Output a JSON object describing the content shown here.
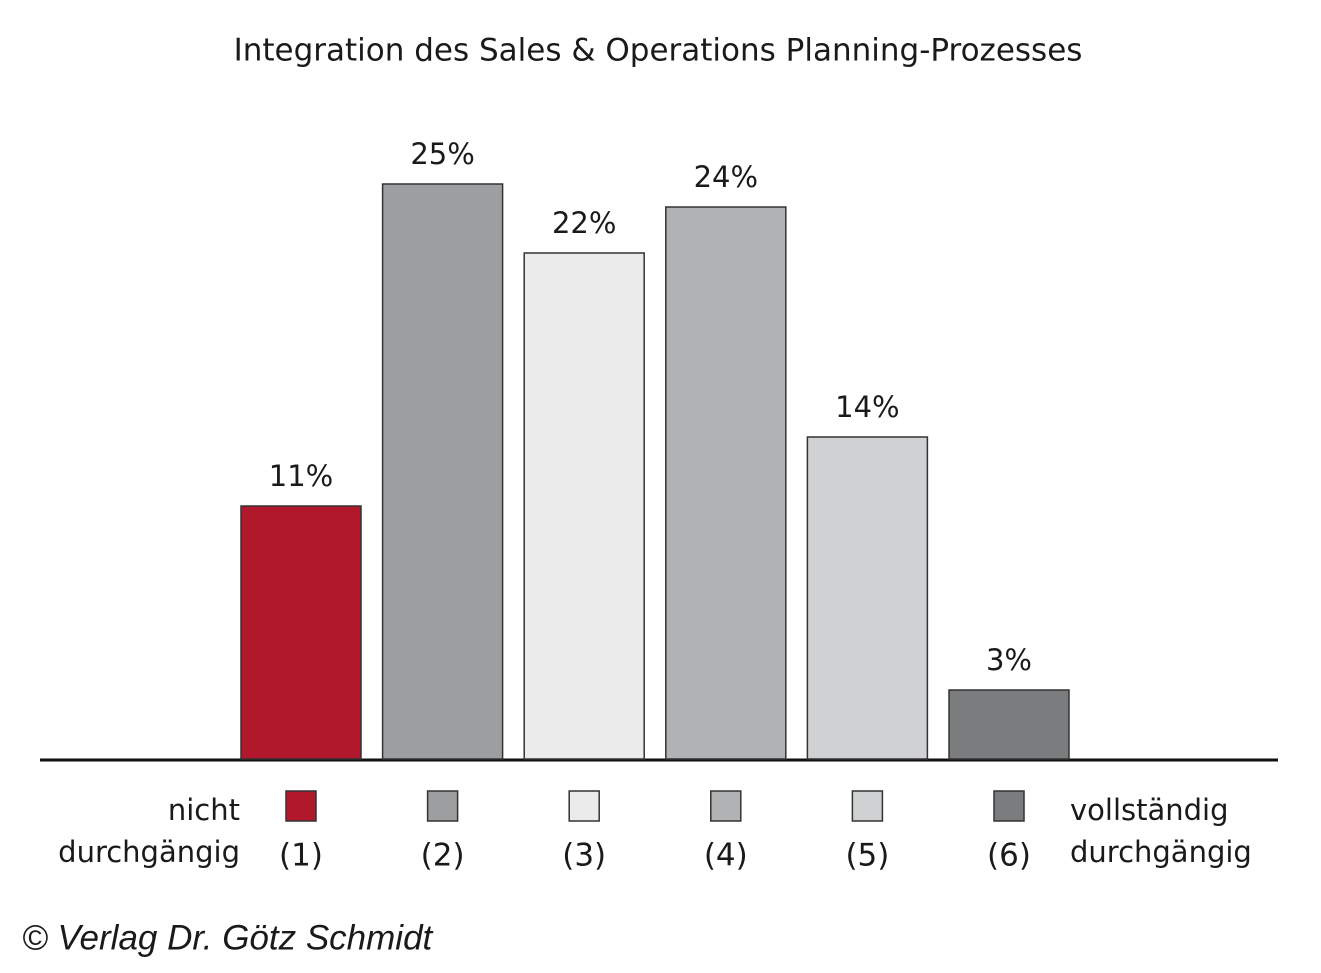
{
  "chart_data": {
    "type": "bar",
    "title": "Integration des Sales & Operations Planning-Prozesses",
    "categories": [
      "(1)",
      "(2)",
      "(3)",
      "(4)",
      "(5)",
      "(6)"
    ],
    "values": [
      11,
      25,
      22,
      24,
      14,
      3
    ],
    "value_labels": [
      "11%",
      "25%",
      "22%",
      "24%",
      "14%",
      "3%"
    ],
    "colors": [
      "#b2182b",
      "#9d9ea0",
      "#ebebeb",
      "#b1b2b4",
      "#d0d1d3",
      "#7b7c7e"
    ],
    "annotations": {
      "left": [
        "nicht",
        "durchgängig"
      ],
      "right": [
        "vollständig",
        "durchgängig"
      ]
    },
    "copyright": "© Verlag Dr. Götz Schmidt"
  }
}
